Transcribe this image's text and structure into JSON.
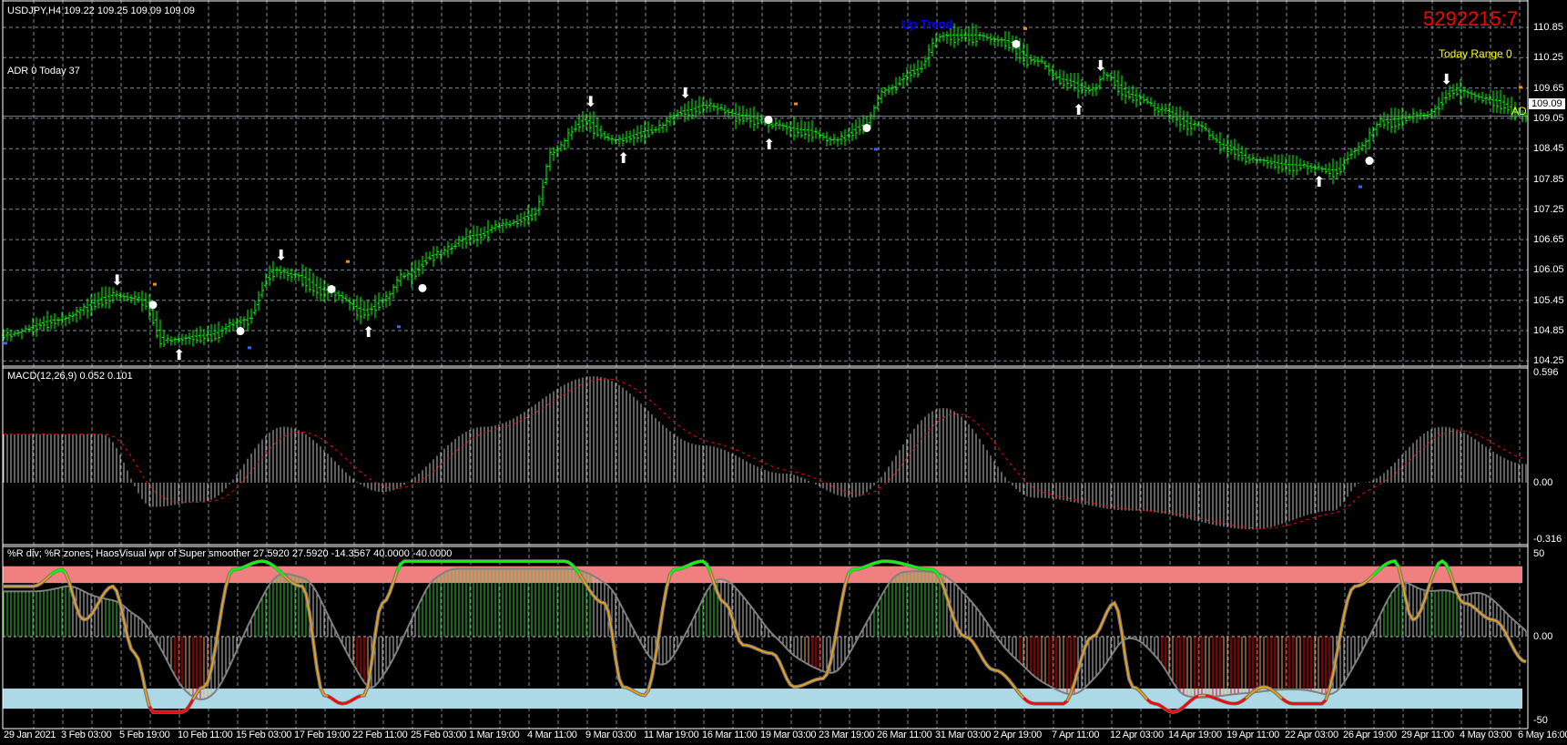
{
  "header": {
    "symbol_info": "USDJPY,H4  109.22 109.25 109.09 109.09",
    "adr_info": "ADR 0  Today 37",
    "counter": "5292215:7",
    "today_range": "Today Range  0",
    "trend_label": "Up Trend",
    "ad_tag": "AD",
    "current_price": "109.09"
  },
  "colors": {
    "background": "#000000",
    "bars": "#00ff00",
    "trail_up": "#3366ff",
    "trail_down": "#ff8c00",
    "macd_hist": "#c0c0c0",
    "macd_signal": "#ff0000",
    "wpr_line": "#ffa500",
    "upper_zone": "#f08080",
    "lower_zone": "#add8e6",
    "grid": "#778899"
  },
  "price_axis": [
    "110.85",
    "110.25",
    "109.65",
    "109.05",
    "108.45",
    "107.85",
    "107.25",
    "106.65",
    "106.05",
    "105.45",
    "104.85",
    "104.25"
  ],
  "macd": {
    "label": "MACD(12,26,9) 0.052 0.101",
    "axis": [
      "0.596",
      "0.00",
      "-0.316"
    ]
  },
  "wpr": {
    "label": "%R div; %R zones;  HaosVisual wpr of Super smoother 27.5920 27.5920 -14.3567 40.0000 -40.0000",
    "axis": [
      "50",
      "0.00",
      "-50"
    ],
    "upper_zone": [
      32,
      42
    ],
    "lower_zone": [
      -43,
      -31
    ]
  },
  "time_axis": [
    "29 Jan 2021",
    "3 Feb 03:00",
    "5 Feb 19:00",
    "10 Feb 11:00",
    "15 Feb 03:00",
    "17 Feb 19:00",
    "22 Feb 11:00",
    "25 Feb 03:00",
    "1 Mar 19:00",
    "4 Mar 11:00",
    "9 Mar 03:00",
    "11 Mar 19:00",
    "16 Mar 11:00",
    "19 Mar 03:00",
    "23 Mar 19:00",
    "26 Mar 11:00",
    "31 Mar 03:00",
    "2 Apr 19:00",
    "7 Apr 11:00",
    "12 Apr 03:00",
    "14 Apr 19:00",
    "19 Apr 11:00",
    "22 Apr 03:00",
    "26 Apr 19:00",
    "29 Apr 11:00",
    "4 May 03:00",
    "6 May 16:00"
  ],
  "chart_data": [
    {
      "type": "line",
      "title": "USDJPY,H4",
      "ylim": [
        104.25,
        110.85
      ],
      "close_keypoints": [
        [
          0,
          104.76
        ],
        [
          14,
          105.06
        ],
        [
          30,
          105.55
        ],
        [
          38,
          105.46
        ],
        [
          44,
          104.66
        ],
        [
          55,
          104.76
        ],
        [
          66,
          105.06
        ],
        [
          74,
          106.05
        ],
        [
          80,
          105.95
        ],
        [
          88,
          105.66
        ],
        [
          99,
          105.26
        ],
        [
          104,
          105.46
        ],
        [
          110,
          105.95
        ],
        [
          118,
          106.35
        ],
        [
          129,
          106.74
        ],
        [
          137,
          106.94
        ],
        [
          145,
          107.14
        ],
        [
          151,
          108.42
        ],
        [
          159,
          109.02
        ],
        [
          167,
          108.62
        ],
        [
          178,
          108.82
        ],
        [
          187,
          109.21
        ],
        [
          192,
          109.31
        ],
        [
          203,
          109.11
        ],
        [
          211,
          108.92
        ],
        [
          220,
          108.82
        ],
        [
          228,
          108.62
        ],
        [
          236,
          108.92
        ],
        [
          242,
          109.61
        ],
        [
          250,
          110.01
        ],
        [
          258,
          110.7
        ],
        [
          266,
          110.7
        ],
        [
          274,
          110.6
        ],
        [
          283,
          110.2
        ],
        [
          291,
          109.81
        ],
        [
          299,
          109.61
        ],
        [
          302,
          109.91
        ],
        [
          310,
          109.51
        ],
        [
          318,
          109.21
        ],
        [
          327,
          108.92
        ],
        [
          335,
          108.52
        ],
        [
          343,
          108.23
        ],
        [
          354,
          108.13
        ],
        [
          365,
          108.03
        ],
        [
          371,
          108.42
        ],
        [
          379,
          109.02
        ],
        [
          390,
          109.11
        ],
        [
          398,
          109.61
        ],
        [
          409,
          109.41
        ],
        [
          418,
          109.09
        ]
      ],
      "arrows_down": [
        31,
        76,
        161,
        187,
        301,
        396
      ],
      "arrows_up": [
        48,
        100,
        170,
        210,
        295,
        361
      ],
      "dots": [
        [
          41,
          105.36
        ],
        [
          65,
          104.84
        ],
        [
          90,
          105.67
        ],
        [
          115,
          105.69
        ],
        [
          210,
          109.02
        ],
        [
          237,
          108.86
        ],
        [
          278,
          110.52
        ],
        [
          375,
          108.21
        ]
      ]
    },
    {
      "type": "bar",
      "title": "MACD(12,26,9)",
      "ylim": [
        -0.316,
        0.596
      ],
      "keypoints": [
        [
          0,
          0.26
        ],
        [
          27,
          0.26
        ],
        [
          41,
          -0.13
        ],
        [
          55,
          -0.1
        ],
        [
          77,
          0.3
        ],
        [
          104,
          -0.05
        ],
        [
          132,
          0.3
        ],
        [
          162,
          0.57
        ],
        [
          192,
          0.2
        ],
        [
          214,
          0.05
        ],
        [
          233,
          -0.08
        ],
        [
          258,
          0.4
        ],
        [
          283,
          -0.08
        ],
        [
          310,
          -0.15
        ],
        [
          343,
          -0.25
        ],
        [
          365,
          -0.15
        ],
        [
          373,
          0.0
        ],
        [
          395,
          0.3
        ],
        [
          418,
          0.1
        ]
      ]
    },
    {
      "type": "line",
      "title": "HaosVisual wpr of Super smoother",
      "ylim": [
        -50,
        50
      ],
      "keypoints": [
        [
          0,
          30
        ],
        [
          8,
          30
        ],
        [
          16,
          40
        ],
        [
          22,
          10
        ],
        [
          30,
          30
        ],
        [
          36,
          -10
        ],
        [
          41,
          -45
        ],
        [
          49,
          -45
        ],
        [
          55,
          -30
        ],
        [
          63,
          40
        ],
        [
          71,
          45
        ],
        [
          82,
          30
        ],
        [
          88,
          -35
        ],
        [
          93,
          -40
        ],
        [
          99,
          -35
        ],
        [
          104,
          20
        ],
        [
          110,
          45
        ],
        [
          129,
          45
        ],
        [
          154,
          45
        ],
        [
          165,
          20
        ],
        [
          170,
          -30
        ],
        [
          176,
          -35
        ],
        [
          184,
          40
        ],
        [
          192,
          45
        ],
        [
          198,
          20
        ],
        [
          203,
          -5
        ],
        [
          211,
          -10
        ],
        [
          217,
          -30
        ],
        [
          225,
          -25
        ],
        [
          233,
          40
        ],
        [
          242,
          45
        ],
        [
          255,
          40
        ],
        [
          264,
          0
        ],
        [
          272,
          -20
        ],
        [
          283,
          -40
        ],
        [
          291,
          -40
        ],
        [
          299,
          0
        ],
        [
          305,
          20
        ],
        [
          310,
          -30
        ],
        [
          316,
          -40
        ],
        [
          321,
          -45
        ],
        [
          329,
          -35
        ],
        [
          338,
          -40
        ],
        [
          346,
          -30
        ],
        [
          354,
          -40
        ],
        [
          362,
          -40
        ],
        [
          371,
          30
        ],
        [
          382,
          45
        ],
        [
          387,
          10
        ],
        [
          395,
          45
        ],
        [
          401,
          20
        ],
        [
          409,
          10
        ],
        [
          418,
          -15
        ]
      ]
    }
  ]
}
